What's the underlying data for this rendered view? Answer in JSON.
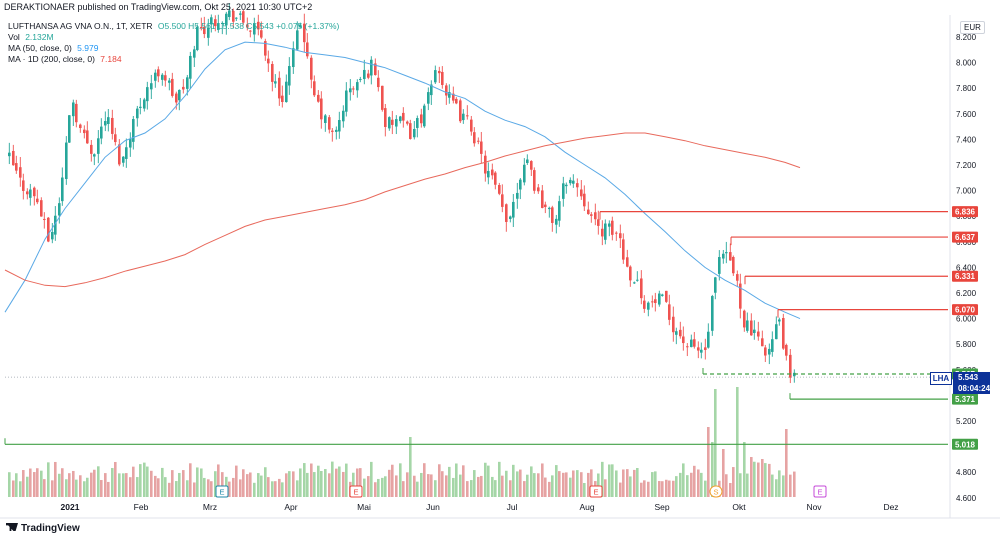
{
  "header": {
    "published": "DERAKTIONAER published on TradingView.com, Okt 25, 2021 10:30 UTC+2"
  },
  "legend": {
    "symbol": "LUFTHANSA AG VNA O.N., 1T, XETR",
    "ohlc": "O5.500 H5.561 L5.538 C5.543 +0.075 (+1.37%)",
    "vol_label": "Vol",
    "vol_value": "2.132M",
    "ma50_label": "MA (50, close, 0)",
    "ma50_value": "5.979",
    "ma200_label": "MA · 1D (200, close, 0)",
    "ma200_value": "7.184"
  },
  "currency": "EUR",
  "symbol_tag": "LHA",
  "last_price": "5.543",
  "countdown": "08:04:24",
  "footer": "TradingView",
  "colors": {
    "up": "#26a69a",
    "down": "#ef5350",
    "ma50": "#5aa9e6",
    "ma200": "#e8695c",
    "resistance": "#e8453c",
    "support": "#43a047",
    "price_tag": "#0c3299"
  },
  "chart_data": {
    "type": "candlestick",
    "y_axis": {
      "ticks": [
        "8.200",
        "8.000",
        "7.800",
        "7.600",
        "7.400",
        "7.200",
        "7.000",
        "6.800",
        "6.600",
        "6.400",
        "6.200",
        "6.000",
        "5.800",
        "5.600",
        "5.400",
        "5.200",
        "5.000",
        "4.800",
        "4.600"
      ],
      "range": [
        4.6,
        8.35
      ]
    },
    "x_axis": {
      "labels": [
        "2021",
        "Feb",
        "Mrz",
        "Apr",
        "Mai",
        "Jun",
        "Jul",
        "Aug",
        "Sep",
        "Okt",
        "Nov",
        "Dez"
      ]
    },
    "resistance_levels": [
      {
        "label": "6.836",
        "value": 6.836,
        "from": "2021-08-02"
      },
      {
        "label": "6.637",
        "value": 6.637,
        "from": "2021-09-29"
      },
      {
        "label": "6.331",
        "value": 6.331,
        "from": "2021-10-04"
      },
      {
        "label": "6.070",
        "value": 6.07,
        "from": "2021-10-15"
      }
    ],
    "support_levels": [
      {
        "label": "5.567",
        "value": 5.567,
        "from": "2021-09-22",
        "dashed": true
      },
      {
        "label": "5.371",
        "value": 5.371,
        "from": "2021-10-22"
      },
      {
        "label": "5.018",
        "value": 5.018,
        "from": "2021-01-01"
      }
    ],
    "events": [
      {
        "label": "E",
        "date": "2021-03-04",
        "color": "#1e88a8"
      },
      {
        "label": "E",
        "date": "2021-05-04",
        "color": "#e8453c"
      },
      {
        "label": "E",
        "date": "2021-08-05",
        "color": "#e8453c"
      },
      {
        "label": "S",
        "date": "2021-09-24",
        "color": "#f0a030"
      },
      {
        "label": "E",
        "date": "2021-11-03",
        "color": "#c64ad9"
      }
    ],
    "ma50": [
      [
        0,
        6.05
      ],
      [
        20,
        6.3
      ],
      [
        40,
        6.62
      ],
      [
        60,
        6.86
      ],
      [
        80,
        7.06
      ],
      [
        100,
        7.26
      ],
      [
        120,
        7.39
      ],
      [
        140,
        7.45
      ],
      [
        160,
        7.56
      ],
      [
        180,
        7.74
      ],
      [
        200,
        7.95
      ],
      [
        220,
        8.1
      ],
      [
        240,
        8.16
      ],
      [
        260,
        8.15
      ],
      [
        280,
        8.12
      ],
      [
        300,
        8.08
      ],
      [
        320,
        8.06
      ],
      [
        340,
        8.04
      ],
      [
        360,
        8.0
      ],
      [
        380,
        7.96
      ],
      [
        400,
        7.9
      ],
      [
        420,
        7.84
      ],
      [
        440,
        7.77
      ],
      [
        460,
        7.72
      ],
      [
        480,
        7.62
      ],
      [
        500,
        7.55
      ],
      [
        520,
        7.5
      ],
      [
        540,
        7.42
      ],
      [
        560,
        7.3
      ],
      [
        580,
        7.2
      ],
      [
        600,
        7.1
      ],
      [
        620,
        6.97
      ],
      [
        640,
        6.82
      ],
      [
        660,
        6.68
      ],
      [
        680,
        6.53
      ],
      [
        700,
        6.4
      ],
      [
        720,
        6.3
      ],
      [
        740,
        6.22
      ],
      [
        760,
        6.12
      ],
      [
        780,
        6.05
      ],
      [
        795,
        6.0
      ]
    ],
    "ma200": [
      [
        0,
        6.38
      ],
      [
        20,
        6.3
      ],
      [
        40,
        6.26
      ],
      [
        60,
        6.25
      ],
      [
        80,
        6.28
      ],
      [
        100,
        6.32
      ],
      [
        120,
        6.37
      ],
      [
        140,
        6.41
      ],
      [
        160,
        6.45
      ],
      [
        180,
        6.5
      ],
      [
        200,
        6.58
      ],
      [
        220,
        6.65
      ],
      [
        240,
        6.72
      ],
      [
        260,
        6.77
      ],
      [
        280,
        6.8
      ],
      [
        300,
        6.83
      ],
      [
        320,
        6.86
      ],
      [
        340,
        6.89
      ],
      [
        360,
        6.93
      ],
      [
        380,
        6.99
      ],
      [
        400,
        7.04
      ],
      [
        420,
        7.09
      ],
      [
        440,
        7.13
      ],
      [
        460,
        7.18
      ],
      [
        480,
        7.22
      ],
      [
        500,
        7.27
      ],
      [
        520,
        7.31
      ],
      [
        540,
        7.35
      ],
      [
        560,
        7.38
      ],
      [
        580,
        7.41
      ],
      [
        600,
        7.43
      ],
      [
        620,
        7.45
      ],
      [
        640,
        7.45
      ],
      [
        660,
        7.42
      ],
      [
        680,
        7.39
      ],
      [
        700,
        7.35
      ],
      [
        720,
        7.32
      ],
      [
        740,
        7.29
      ],
      [
        760,
        7.26
      ],
      [
        780,
        7.22
      ],
      [
        795,
        7.18
      ]
    ]
  }
}
